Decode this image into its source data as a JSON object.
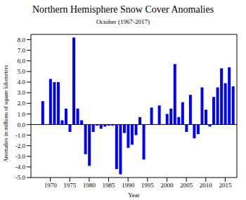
{
  "chart_data": {
    "type": "bar",
    "title": "Northern Hemisphere Snow Cover Anomalies",
    "subtitle": "October (1967-2017)",
    "x_label": "Year",
    "y_label": "Anomalies in millions of square kilometers",
    "x": [
      1967,
      1968,
      1969,
      1970,
      1971,
      1972,
      1973,
      1974,
      1975,
      1976,
      1977,
      1978,
      1979,
      1980,
      1981,
      1982,
      1983,
      1984,
      1985,
      1986,
      1987,
      1988,
      1989,
      1990,
      1991,
      1992,
      1993,
      1994,
      1995,
      1996,
      1997,
      1998,
      1999,
      2000,
      2001,
      2002,
      2003,
      2004,
      2005,
      2006,
      2007,
      2008,
      2009,
      2010,
      2011,
      2012,
      2013,
      2014,
      2015,
      2016,
      2017
    ],
    "values": [
      null,
      2.2,
      null,
      4.3,
      4.0,
      4.0,
      0.4,
      1.5,
      -0.7,
      8.2,
      1.5,
      0.4,
      -2.8,
      -3.9,
      -0.7,
      -0.1,
      -0.4,
      -0.2,
      -0.1,
      -0.1,
      -4.2,
      -4.7,
      -0.8,
      -2.2,
      -1.9,
      -1.0,
      0.7,
      -3.3,
      0.0,
      1.6,
      0.0,
      1.8,
      0.0,
      1.0,
      1.5,
      5.7,
      0.7,
      2.1,
      -0.7,
      2.8,
      -1.3,
      -0.9,
      3.5,
      1.4,
      -0.2,
      2.6,
      3.5,
      5.3,
      3.9,
      5.4,
      3.6
    ],
    "color": "#0000ff",
    "xlim": [
      1965,
      2018
    ],
    "xticks": [
      1970,
      1975,
      1980,
      1985,
      1990,
      1995,
      2000,
      2005,
      2010,
      2015
    ],
    "ylim": [
      -5,
      8.5
    ],
    "yticks": [
      {
        "value": -5,
        "label": "-5.0"
      },
      {
        "value": -4,
        "label": "-4.0"
      },
      {
        "value": -3,
        "label": "-3.0"
      },
      {
        "value": -2,
        "label": "-2.0"
      },
      {
        "value": -1,
        "label": "-1.0"
      },
      {
        "value": 0,
        "label": "0.0"
      },
      {
        "value": 1,
        "label": "1.0"
      },
      {
        "value": 2,
        "label": "2.0"
      },
      {
        "value": 3,
        "label": "3.0"
      },
      {
        "value": 4,
        "label": "4.0"
      },
      {
        "value": 5,
        "label": "5.0"
      },
      {
        "value": 6,
        "label": "6.0"
      },
      {
        "value": 7,
        "label": "7.0"
      },
      {
        "value": 8,
        "label": "8.0"
      }
    ],
    "grid": false
  }
}
